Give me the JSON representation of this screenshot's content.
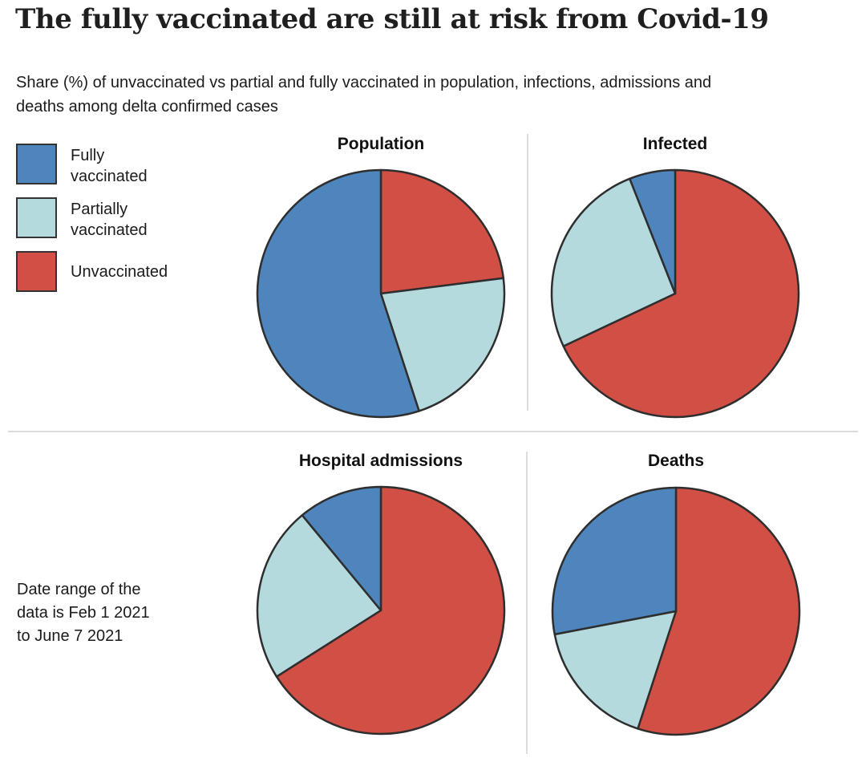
{
  "chart_data": {
    "type": "pie",
    "title": "The fully vaccinated are still at risk from Covid-19",
    "subtitle": "Share (%) of unvaccinated vs partial and fully vaccinated in population, infections, admissions and\ndeaths among delta confirmed cases",
    "note": "Date range of the\ndata is Feb 1 2021\nto June 7 2021",
    "units": "percent share",
    "legend_position": "left",
    "grid": false,
    "categories": [
      "Fully vaccinated",
      "Partially vaccinated",
      "Unvaccinated"
    ],
    "legend": [
      {
        "key": "fully",
        "label": "Fully\nvaccinated",
        "color": "#4f85bd"
      },
      {
        "key": "partially",
        "label": "Partially\nvaccinated",
        "color": "#b5dade"
      },
      {
        "key": "unvaccinated",
        "label": "Unvaccinated",
        "color": "#d14f44"
      }
    ],
    "draw_order": [
      "unvaccinated",
      "partially",
      "fully"
    ],
    "start_angle_deg": 0,
    "direction": "clockwise",
    "slice_stroke_color": "#2e2e2e",
    "pies": [
      {
        "title": "Population",
        "values": {
          "fully": 55,
          "partially": 22,
          "unvaccinated": 23
        }
      },
      {
        "title": "Infected",
        "values": {
          "fully": 6,
          "partially": 26,
          "unvaccinated": 68
        }
      },
      {
        "title": "Hospital admissions",
        "values": {
          "fully": 11,
          "partially": 23,
          "unvaccinated": 66
        }
      },
      {
        "title": "Deaths",
        "values": {
          "fully": 28,
          "partially": 17,
          "unvaccinated": 55
        }
      }
    ]
  },
  "colors": {
    "background": "#ffffff",
    "divider": "#dcdcdc",
    "text": "#1c1c1c",
    "swatch_border": "#333333"
  }
}
